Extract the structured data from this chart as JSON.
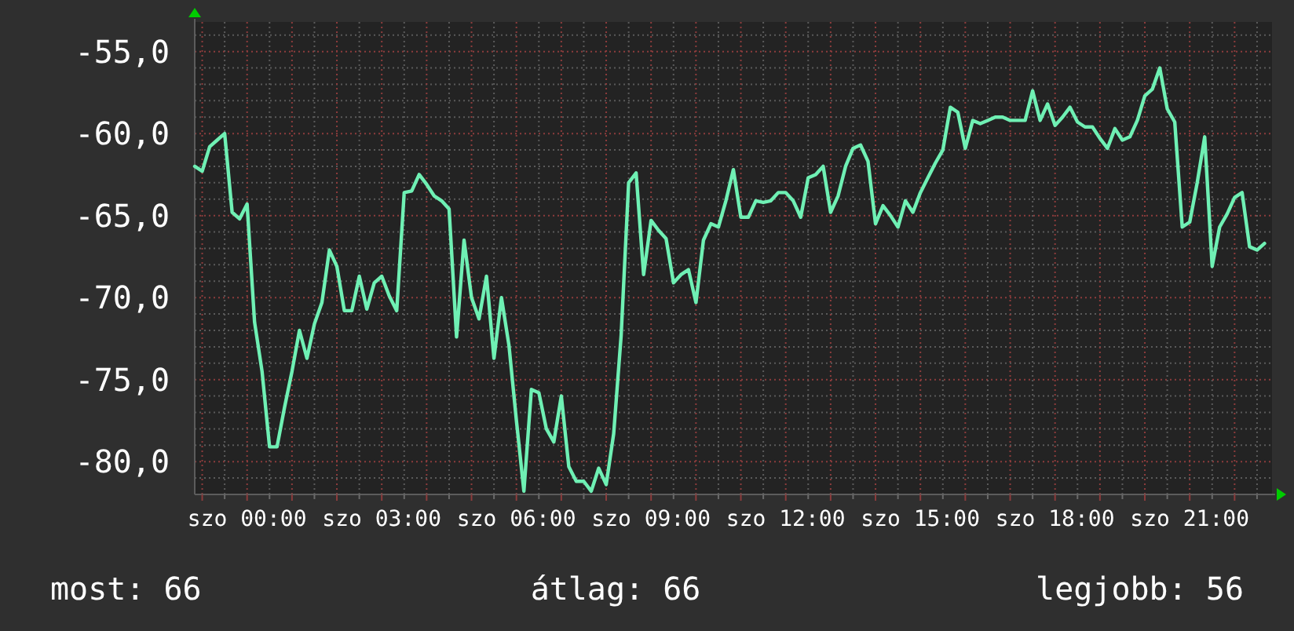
{
  "chart_data": {
    "type": "line",
    "categories": [
      null,
      null,
      null,
      null,
      null,
      null,
      null,
      "szo 00:00",
      null,
      null,
      null,
      null,
      null,
      null,
      null,
      null,
      null,
      null,
      null,
      null,
      null,
      null,
      null,
      null,
      null,
      "szo 03:00",
      null,
      null,
      null,
      null,
      null,
      null,
      null,
      null,
      null,
      null,
      null,
      null,
      null,
      null,
      null,
      null,
      null,
      "szo 06:00",
      null,
      null,
      null,
      null,
      null,
      null,
      null,
      null,
      null,
      null,
      null,
      null,
      null,
      null,
      null,
      null,
      null,
      "szo 09:00",
      null,
      null,
      null,
      null,
      null,
      null,
      null,
      null,
      null,
      null,
      null,
      null,
      null,
      null,
      null,
      null,
      null,
      "szo 12:00",
      null,
      null,
      null,
      null,
      null,
      null,
      null,
      null,
      null,
      null,
      null,
      null,
      null,
      null,
      null,
      null,
      null,
      "szo 15:00",
      null,
      null,
      null,
      null,
      null,
      null,
      null,
      null,
      null,
      null,
      null,
      null,
      null,
      null,
      null,
      null,
      null,
      "szo 18:00",
      null,
      null,
      null,
      null,
      null,
      null,
      null,
      null,
      null,
      null,
      null,
      null,
      null,
      null,
      null,
      null,
      null,
      "szo 21:00",
      null,
      null,
      null,
      null,
      null,
      null,
      null,
      null,
      null,
      null,
      null
    ],
    "series": [
      {
        "color": "#6ff0b4",
        "values": [
          -62.0,
          -62.3,
          -60.8,
          -60.4,
          -60.0,
          -64.8,
          -65.2,
          -64.3,
          -71.5,
          -74.5,
          -79.1,
          -79.1,
          -76.7,
          -74.5,
          -72.0,
          -73.7,
          -71.6,
          -70.3,
          -67.1,
          -68.1,
          -70.8,
          -70.8,
          -68.7,
          -70.7,
          -69.1,
          -68.7,
          -69.9,
          -70.8,
          -63.6,
          -63.5,
          -62.5,
          -63.1,
          -63.8,
          -64.1,
          -64.6,
          -72.4,
          -66.5,
          -70.0,
          -71.3,
          -68.7,
          -73.7,
          -70.0,
          -72.9,
          -77.5,
          -81.8,
          -75.6,
          -75.8,
          -78.0,
          -78.8,
          -76.0,
          -80.3,
          -81.2,
          -81.2,
          -81.8,
          -80.4,
          -81.4,
          -78.3,
          -72.3,
          -63.0,
          -62.4,
          -68.6,
          -65.3,
          -65.9,
          -66.4,
          -69.1,
          -68.6,
          -68.3,
          -70.3,
          -66.5,
          -65.5,
          -65.7,
          -64.1,
          -62.2,
          -65.1,
          -65.1,
          -64.1,
          -64.2,
          -64.1,
          -63.6,
          -63.6,
          -64.1,
          -65.1,
          -62.7,
          -62.5,
          -62.0,
          -64.8,
          -63.8,
          -62.0,
          -60.9,
          -60.7,
          -61.7,
          -65.5,
          -64.4,
          -65.0,
          -65.7,
          -64.1,
          -64.8,
          -63.6,
          -62.7,
          -61.8,
          -61.0,
          -58.4,
          -58.7,
          -60.9,
          -59.2,
          -59.4,
          -59.2,
          -59.0,
          -59.0,
          -59.2,
          -59.2,
          -59.2,
          -57.4,
          -59.2,
          -58.2,
          -59.5,
          -59.0,
          -58.4,
          -59.3,
          -59.6,
          -59.6,
          -60.3,
          -60.9,
          -59.7,
          -60.4,
          -60.2,
          -59.2,
          -57.7,
          -57.3,
          -56.0,
          -58.5,
          -59.3,
          -65.7,
          -65.4,
          -63.0,
          -60.2,
          -68.1,
          -65.7,
          -64.9,
          -63.9,
          -63.6,
          -66.9,
          -67.1,
          -66.7,
          null
        ]
      }
    ],
    "ylim": [
      -82.0,
      -53.2
    ],
    "yticks": [
      {
        "value": -80,
        "label": "-80,0"
      },
      {
        "value": -75,
        "label": "-75,0"
      },
      {
        "value": -70,
        "label": "-70,0"
      },
      {
        "value": -65,
        "label": "-65,0"
      },
      {
        "value": -60,
        "label": "-60,0"
      },
      {
        "value": -55,
        "label": "-55,0"
      }
    ],
    "grid": true,
    "annotations": [
      "most: 66",
      "átlag: 66",
      "legjobb: 56"
    ]
  }
}
